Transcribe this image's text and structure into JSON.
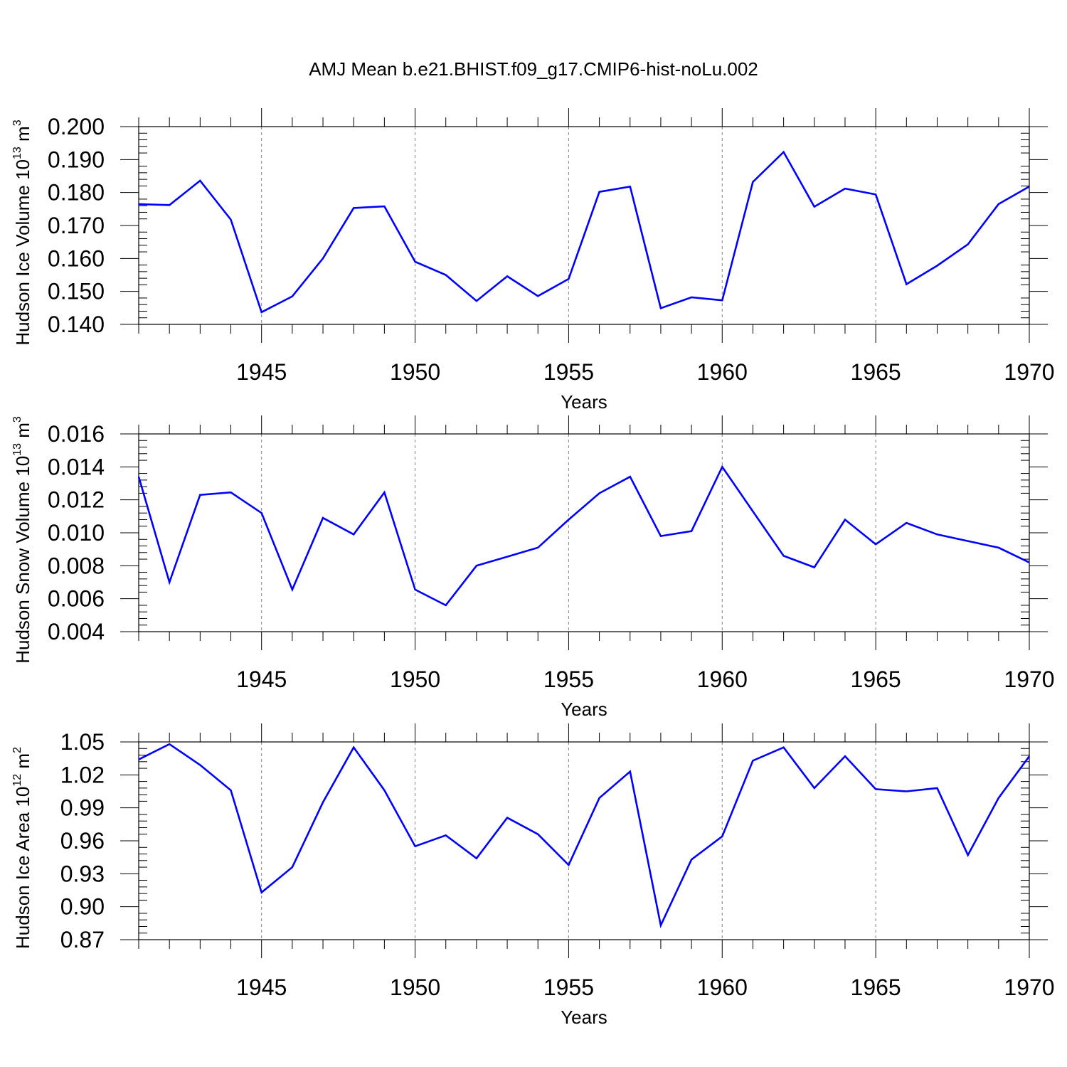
{
  "title": "AMJ Mean b.e21.BHIST.f09_g17.CMIP6-hist-noLu.002",
  "colors": {
    "line": "#0000ff",
    "axis": "#000000",
    "grid": "#808080"
  },
  "chart_data": [
    {
      "type": "line",
      "xlabel": "Years",
      "ylabel": {
        "text": "Hudson Ice Volume 10",
        "exp": "13",
        "unit": " m",
        "unit_exp": "3"
      },
      "xlim": [
        1941,
        1970
      ],
      "ylim": [
        0.14,
        0.2
      ],
      "ytick_labels": [
        "0.140",
        "0.150",
        "0.160",
        "0.170",
        "0.180",
        "0.190",
        "0.200"
      ],
      "ytick_values": [
        0.14,
        0.15,
        0.16,
        0.17,
        0.18,
        0.19,
        0.2
      ],
      "xtick_labels": [
        "1945",
        "1950",
        "1955",
        "1960",
        "1965",
        "1970"
      ],
      "xtick_values": [
        1945,
        1950,
        1955,
        1960,
        1965,
        1970
      ],
      "grid": "vertical dashed at labeled years",
      "series": [
        {
          "name": "Hudson Ice Volume",
          "x": [
            1941,
            1942,
            1943,
            1944,
            1945,
            1946,
            1947,
            1948,
            1949,
            1950,
            1951,
            1952,
            1953,
            1954,
            1955,
            1956,
            1957,
            1958,
            1959,
            1960,
            1961,
            1962,
            1963,
            1964,
            1965,
            1966,
            1967,
            1968,
            1969,
            1970
          ],
          "values": [
            0.1765,
            0.1762,
            0.1836,
            0.1718,
            0.1437,
            0.1485,
            0.16,
            0.1753,
            0.1758,
            0.159,
            0.155,
            0.1471,
            0.1546,
            0.1486,
            0.1538,
            0.1802,
            0.1818,
            0.1449,
            0.1482,
            0.1473,
            0.1832,
            0.1923,
            0.1757,
            0.1812,
            0.1794,
            0.1522,
            0.1578,
            0.1643,
            0.1765,
            0.1818
          ]
        }
      ]
    },
    {
      "type": "line",
      "xlabel": "Years",
      "ylabel": {
        "text": "Hudson Snow Volume 10",
        "exp": "13",
        "unit": " m",
        "unit_exp": "3"
      },
      "xlim": [
        1941,
        1970
      ],
      "ylim": [
        0.004,
        0.016
      ],
      "ytick_labels": [
        "0.004",
        "0.006",
        "0.008",
        "0.010",
        "0.012",
        "0.014",
        "0.016"
      ],
      "ytick_values": [
        0.004,
        0.006,
        0.008,
        0.01,
        0.012,
        0.014,
        0.016
      ],
      "xtick_labels": [
        "1945",
        "1950",
        "1955",
        "1960",
        "1965",
        "1970"
      ],
      "xtick_values": [
        1945,
        1950,
        1955,
        1960,
        1965,
        1970
      ],
      "grid": "vertical dashed at labeled years",
      "series": [
        {
          "name": "Hudson Snow Volume",
          "x": [
            1941,
            1942,
            1943,
            1944,
            1945,
            1946,
            1947,
            1948,
            1949,
            1950,
            1951,
            1952,
            1953,
            1954,
            1955,
            1956,
            1957,
            1958,
            1959,
            1960,
            1961,
            1962,
            1963,
            1964,
            1965,
            1966,
            1967,
            1968,
            1969,
            1970
          ],
          "values": [
            0.0134,
            0.007,
            0.0123,
            0.01245,
            0.0112,
            0.00655,
            0.0109,
            0.0099,
            0.01245,
            0.00655,
            0.0056,
            0.008,
            0.00855,
            0.0091,
            0.0108,
            0.0124,
            0.0134,
            0.0098,
            0.0101,
            0.014,
            0.0113,
            0.0086,
            0.0079,
            0.0108,
            0.0093,
            0.0106,
            0.0099,
            0.0095,
            0.0091,
            0.0082
          ]
        }
      ]
    },
    {
      "type": "line",
      "xlabel": "Years",
      "ylabel": {
        "text": "Hudson Ice Area 10",
        "exp": "12",
        "unit": " m",
        "unit_exp": "2"
      },
      "xlim": [
        1941,
        1970
      ],
      "ylim": [
        0.87,
        1.05
      ],
      "ytick_labels": [
        "0.87",
        "0.90",
        "0.93",
        "0.96",
        "0.99",
        "1.02",
        "1.05"
      ],
      "ytick_values": [
        0.87,
        0.9,
        0.93,
        0.96,
        0.99,
        1.02,
        1.05
      ],
      "xtick_labels": [
        "1945",
        "1950",
        "1955",
        "1960",
        "1965",
        "1970"
      ],
      "xtick_values": [
        1945,
        1950,
        1955,
        1960,
        1965,
        1970
      ],
      "grid": "vertical dashed at labeled years",
      "series": [
        {
          "name": "Hudson Ice Area",
          "x": [
            1941,
            1942,
            1943,
            1944,
            1945,
            1946,
            1947,
            1948,
            1949,
            1950,
            1951,
            1952,
            1953,
            1954,
            1955,
            1956,
            1957,
            1958,
            1959,
            1960,
            1961,
            1962,
            1963,
            1964,
            1965,
            1966,
            1967,
            1968,
            1969,
            1970
          ],
          "values": [
            1.034,
            1.048,
            1.029,
            1.006,
            0.913,
            0.936,
            0.995,
            1.045,
            1.006,
            0.955,
            0.965,
            0.944,
            0.981,
            0.966,
            0.938,
            0.999,
            1.023,
            0.883,
            0.943,
            0.964,
            1.033,
            1.045,
            1.008,
            1.037,
            1.007,
            1.005,
            1.008,
            0.947,
            0.999,
            1.037
          ]
        }
      ]
    }
  ]
}
